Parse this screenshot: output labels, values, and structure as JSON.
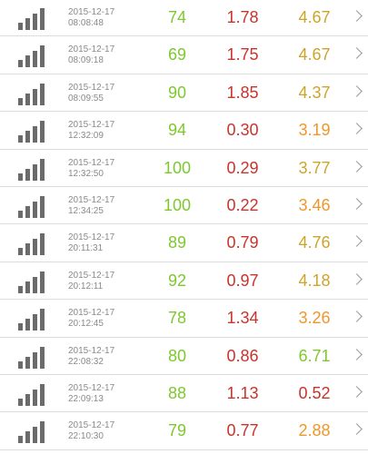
{
  "icons": {
    "signal": "signal-strength-icon",
    "chevron": "chevron-right-icon"
  },
  "colors": {
    "ping": "#7ec82e",
    "download": "#c8332c",
    "upload_yellow": "#cda42a",
    "upload_orange": "#f0962a",
    "upload_green": "#7ec82e",
    "upload_red": "#c8332c",
    "bars": "#6b6b6b",
    "date": "#8a8a8a"
  },
  "tests": [
    {
      "date": "2015-12-17",
      "time": "08:08:48",
      "ping": "74",
      "download": "1.78",
      "upload": "4.67",
      "upload_color": "#cda42a"
    },
    {
      "date": "2015-12-17",
      "time": "08:09:18",
      "ping": "69",
      "download": "1.75",
      "upload": "4.67",
      "upload_color": "#cda42a"
    },
    {
      "date": "2015-12-17",
      "time": "08:09:55",
      "ping": "90",
      "download": "1.85",
      "upload": "4.37",
      "upload_color": "#cda42a"
    },
    {
      "date": "2015-12-17",
      "time": "12:32:09",
      "ping": "94",
      "download": "0.30",
      "upload": "3.19",
      "upload_color": "#f0962a"
    },
    {
      "date": "2015-12-17",
      "time": "12:32:50",
      "ping": "100",
      "download": "0.29",
      "upload": "3.77",
      "upload_color": "#cda42a"
    },
    {
      "date": "2015-12-17",
      "time": "12:34:25",
      "ping": "100",
      "download": "0.22",
      "upload": "3.46",
      "upload_color": "#f0962a"
    },
    {
      "date": "2015-12-17",
      "time": "20:11:31",
      "ping": "89",
      "download": "0.79",
      "upload": "4.76",
      "upload_color": "#cda42a"
    },
    {
      "date": "2015-12-17",
      "time": "20:12:11",
      "ping": "92",
      "download": "0.97",
      "upload": "4.18",
      "upload_color": "#cda42a"
    },
    {
      "date": "2015-12-17",
      "time": "20:12:45",
      "ping": "78",
      "download": "1.34",
      "upload": "3.26",
      "upload_color": "#f0962a"
    },
    {
      "date": "2015-12-17",
      "time": "22:08:32",
      "ping": "80",
      "download": "0.86",
      "upload": "6.71",
      "upload_color": "#7ec82e"
    },
    {
      "date": "2015-12-17",
      "time": "22:09:13",
      "ping": "88",
      "download": "1.13",
      "upload": "0.52",
      "upload_color": "#c8332c"
    },
    {
      "date": "2015-12-17",
      "time": "22:10:30",
      "ping": "79",
      "download": "0.77",
      "upload": "2.88",
      "upload_color": "#f0962a"
    }
  ]
}
